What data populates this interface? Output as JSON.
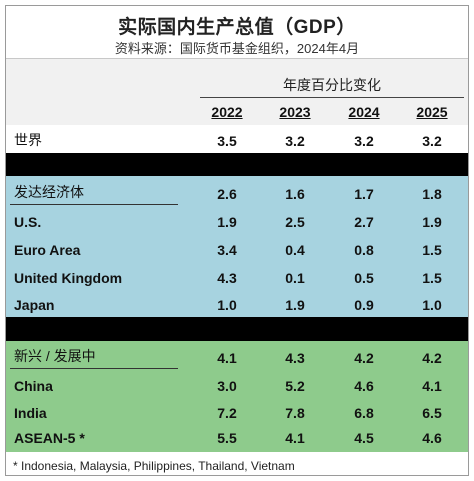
{
  "title": "实际国内生产总值（GDP）",
  "subtitle": "资料来源：国际货币基金组织，2024年4月",
  "change_header": "年度百分比变化",
  "years": [
    "2022",
    "2023",
    "2024",
    "2025"
  ],
  "world": {
    "label": "世界",
    "values": [
      "3.5",
      "3.2",
      "3.2",
      "3.2"
    ]
  },
  "advanced": {
    "label": "发达经济体",
    "values": [
      "2.6",
      "1.6",
      "1.7",
      "1.8"
    ],
    "rows": [
      {
        "label": "U.S.",
        "values": [
          "1.9",
          "2.5",
          "2.7",
          "1.9"
        ]
      },
      {
        "label": "Euro Area",
        "values": [
          "3.4",
          "0.4",
          "0.8",
          "1.5"
        ]
      },
      {
        "label": "United Kingdom",
        "values": [
          "4.3",
          "0.1",
          "0.5",
          "1.5"
        ]
      },
      {
        "label": "Japan",
        "values": [
          "1.0",
          "1.9",
          "0.9",
          "1.0"
        ]
      }
    ]
  },
  "emerging": {
    "label": "新兴 / 发展中",
    "values": [
      "4.1",
      "4.3",
      "4.2",
      "4.2"
    ],
    "rows": [
      {
        "label": "China",
        "values": [
          "3.0",
          "5.2",
          "4.6",
          "4.1"
        ]
      },
      {
        "label": "India",
        "values": [
          "7.2",
          "7.8",
          "6.8",
          "6.5"
        ]
      },
      {
        "label": "ASEAN-5 *",
        "values": [
          "5.5",
          "4.1",
          "4.5",
          "4.6"
        ]
      }
    ]
  },
  "footnote": "* Indonesia, Malaysia, Philippines, Thailand, Vietnam",
  "colors": {
    "advanced_band": "#a7d3e0",
    "emerging_band": "#8ecb8c",
    "separator": "#000000"
  }
}
